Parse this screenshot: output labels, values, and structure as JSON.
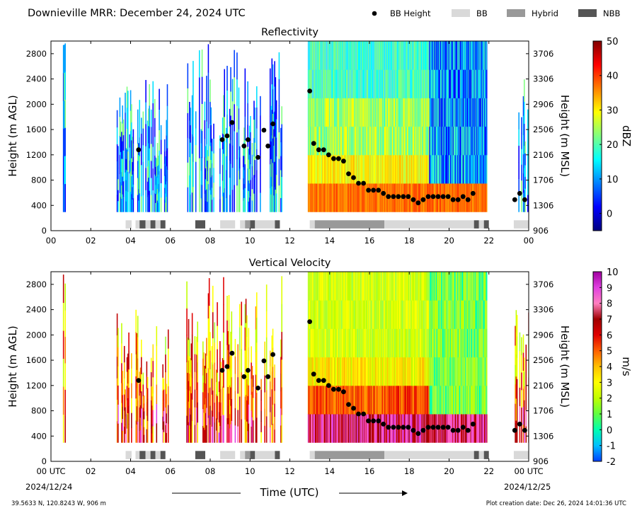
{
  "header": {
    "title": "Downieville MRR:  December 24, 2024 UTC",
    "legend": [
      {
        "label": "BB Height",
        "kind": "dot",
        "color": "#000000"
      },
      {
        "label": "BB",
        "kind": "box",
        "color": "#d9d9d9"
      },
      {
        "label": "Hybrid",
        "kind": "box",
        "color": "#999999"
      },
      {
        "label": "NBB",
        "kind": "box",
        "color": "#555555"
      }
    ]
  },
  "footer": {
    "coords": "39.5633 N, 120.8243 W, 906 m",
    "creation": "Plot creation date: Dec 26, 2024 14:01:36 UTC",
    "xlabel": "Time (UTC)",
    "start_label": "00 UTC",
    "start_date": "2024/12/24",
    "end_label": "00 UTC",
    "end_date": "2024/12/25"
  },
  "colors": {
    "bb": "#d9d9d9",
    "hybrid": "#999999",
    "nbb": "#555555",
    "dot": "#000000"
  },
  "chart_data": [
    {
      "type": "heatmap",
      "title": "Reflectivity",
      "ylabel": "Height (m AGL)",
      "y2label": "Height (m MSL)",
      "xlim": [
        0,
        24
      ],
      "ylim": [
        0,
        3000
      ],
      "xticks": [
        "00",
        "02",
        "04",
        "06",
        "08",
        "10",
        "12",
        "14",
        "16",
        "18",
        "20",
        "22",
        "00"
      ],
      "yticks": [
        0,
        400,
        800,
        1200,
        1600,
        2000,
        2400,
        2800
      ],
      "y2ticks": [
        906,
        1306,
        1706,
        2106,
        2506,
        2906,
        3306,
        3706
      ],
      "colorbar": {
        "label": "dBZ",
        "min": -5,
        "max": 50,
        "ticks": [
          0,
          10,
          20,
          30,
          40,
          50
        ],
        "colors": [
          "#000080",
          "#0000ff",
          "#0080ff",
          "#00ffff",
          "#80ff80",
          "#ffff00",
          "#ff8000",
          "#ff0000",
          "#800000"
        ]
      }
    },
    {
      "type": "heatmap",
      "title": "Vertical Velocity",
      "ylabel": "Height (m AGL)",
      "y2label": "Height (m MSL)",
      "xlim": [
        0,
        24
      ],
      "ylim": [
        0,
        3000
      ],
      "xticks": [
        "00 UTC",
        "02",
        "04",
        "06",
        "08",
        "10",
        "12",
        "14",
        "16",
        "18",
        "20",
        "22",
        "00 UTC"
      ],
      "yticks": [
        0,
        400,
        800,
        1200,
        1600,
        2000,
        2400,
        2800
      ],
      "y2ticks": [
        906,
        1306,
        1706,
        2106,
        2506,
        2906,
        3306,
        3706
      ],
      "colorbar": {
        "label": "m/s",
        "min": -2,
        "max": 10,
        "ticks": [
          -2,
          -1,
          0,
          1,
          2,
          3,
          4,
          5,
          6,
          7,
          8,
          9,
          10
        ],
        "colors": [
          "#0040ff",
          "#00c0ff",
          "#00ffb0",
          "#60ff40",
          "#c0ff00",
          "#ffff00",
          "#ffc000",
          "#ff6000",
          "#e00000",
          "#a00000",
          "#ff80c0",
          "#e040e0",
          "#a000a0"
        ]
      }
    }
  ],
  "bb_height": {
    "x": [
      4.4,
      8.6,
      8.85,
      9.1,
      9.7,
      9.9,
      10.4,
      10.7,
      10.9,
      11.15,
      13.0,
      13.2,
      13.45,
      13.7,
      13.95,
      14.2,
      14.45,
      14.7,
      14.95,
      15.2,
      15.45,
      15.7,
      15.95,
      16.2,
      16.45,
      16.7,
      16.95,
      17.2,
      17.45,
      17.7,
      17.95,
      18.2,
      18.45,
      18.7,
      18.95,
      19.2,
      19.45,
      19.7,
      19.95,
      20.2,
      20.45,
      20.7,
      20.95,
      21.2,
      23.3,
      23.55,
      23.8
    ],
    "y": [
      1280,
      1440,
      1500,
      1710,
      1340,
      1440,
      1160,
      1590,
      1340,
      1690,
      2210,
      1380,
      1280,
      1280,
      1200,
      1140,
      1140,
      1100,
      900,
      840,
      750,
      750,
      640,
      640,
      640,
      590,
      540,
      540,
      540,
      540,
      540,
      490,
      440,
      490,
      540,
      540,
      540,
      540,
      540,
      490,
      490,
      540,
      490,
      590,
      490,
      590,
      490
    ]
  },
  "bb_bars": [
    {
      "start": 3.75,
      "end": 4.05,
      "type": "bb"
    },
    {
      "start": 4.25,
      "end": 4.45,
      "type": "bb"
    },
    {
      "start": 4.45,
      "end": 4.75,
      "type": "nbb"
    },
    {
      "start": 4.75,
      "end": 5.0,
      "type": "bb"
    },
    {
      "start": 5.0,
      "end": 5.25,
      "type": "nbb"
    },
    {
      "start": 5.25,
      "end": 5.5,
      "type": "bb"
    },
    {
      "start": 5.5,
      "end": 5.75,
      "type": "nbb"
    },
    {
      "start": 7.25,
      "end": 7.75,
      "type": "nbb"
    },
    {
      "start": 8.5,
      "end": 9.25,
      "type": "bb"
    },
    {
      "start": 9.5,
      "end": 9.75,
      "type": "bb"
    },
    {
      "start": 9.75,
      "end": 10.0,
      "type": "hybrid"
    },
    {
      "start": 10.0,
      "end": 10.25,
      "type": "nbb"
    },
    {
      "start": 10.25,
      "end": 11.25,
      "type": "bb"
    },
    {
      "start": 11.25,
      "end": 11.5,
      "type": "nbb"
    },
    {
      "start": 13.0,
      "end": 13.25,
      "type": "bb"
    },
    {
      "start": 13.25,
      "end": 16.75,
      "type": "hybrid"
    },
    {
      "start": 16.75,
      "end": 21.25,
      "type": "bb"
    },
    {
      "start": 21.25,
      "end": 21.5,
      "type": "nbb"
    },
    {
      "start": 21.5,
      "end": 21.75,
      "type": "bb"
    },
    {
      "start": 21.75,
      "end": 22.0,
      "type": "nbb"
    },
    {
      "start": 23.25,
      "end": 24.0,
      "type": "bb"
    }
  ]
}
